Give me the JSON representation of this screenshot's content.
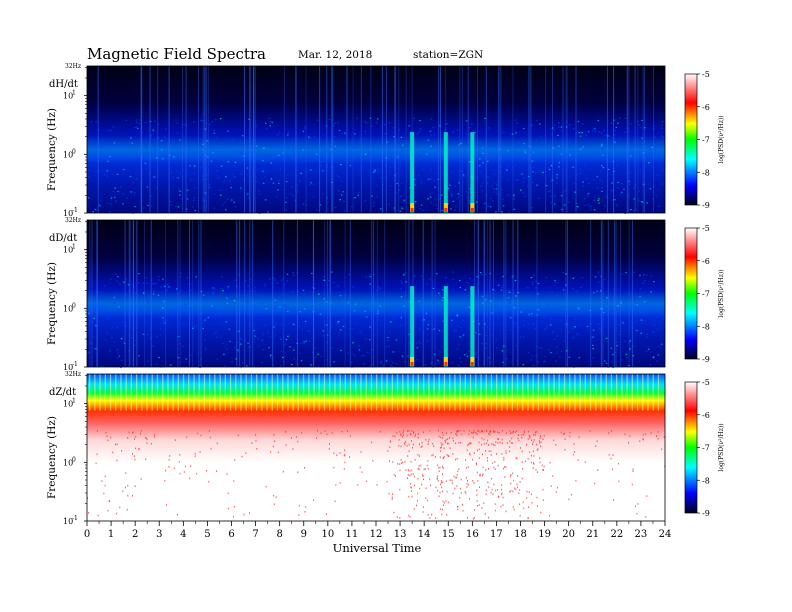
{
  "header": {
    "title": "Magnetic  Field  Spectra",
    "date": "Mar. 12, 2018",
    "station": "station=ZGN"
  },
  "chart_data": {
    "type": "heatmap",
    "xlabel": "Universal Time",
    "xlim": [
      0,
      24
    ],
    "x_ticks": [
      "0",
      "1",
      "2",
      "3",
      "4",
      "5",
      "6",
      "7",
      "8",
      "9",
      "10",
      "11",
      "12",
      "13",
      "14",
      "15",
      "16",
      "17",
      "18",
      "19",
      "20",
      "21",
      "22",
      "23",
      "24"
    ],
    "ylabel": "Frequency  (Hz)",
    "y_scale": "log",
    "ylim": [
      0.1,
      32
    ],
    "y_tick_labels": [
      {
        "value": 32,
        "label": "32Hz"
      },
      {
        "value": 10,
        "label": "10",
        "exp": "1"
      },
      {
        "value": 1,
        "label": "10",
        "exp": "0"
      },
      {
        "value": 0.1,
        "label": "10",
        "exp": "-1"
      }
    ],
    "colorbar": {
      "label": "log(PSD(ν²/Hz))",
      "range": [
        -9,
        -5
      ],
      "ticks": [
        "-5",
        "-6",
        "-7",
        "-8",
        "-9"
      ],
      "colors": [
        "#000020",
        "#0000ff",
        "#00ffff",
        "#00ff00",
        "#ffff00",
        "#ff0000",
        "#ffffff"
      ]
    },
    "panels": [
      {
        "name": "dH/dt",
        "style": "low-power"
      },
      {
        "name": "dD/dt",
        "style": "low-power"
      },
      {
        "name": "dZ/dt",
        "style": "high-power"
      }
    ],
    "noted_events_ut": [
      13.5,
      14.9,
      16.0
    ]
  }
}
